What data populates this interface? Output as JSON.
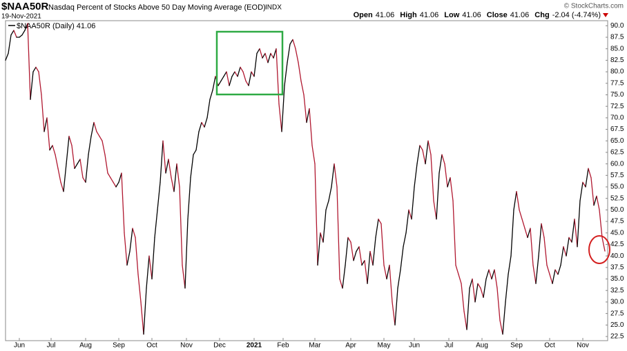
{
  "chart_data": {
    "type": "line",
    "title": "$NAA50R",
    "subtitle": "Nasdaq Percent of Stocks Above 50 Day Moving Average (EOD)",
    "exchange": "INDX",
    "date": "19-Nov-2021",
    "credit": "© StockCharts.com",
    "quote": [
      {
        "label": "Open",
        "value": 41.06
      },
      {
        "label": "High",
        "value": 41.06
      },
      {
        "label": "Low",
        "value": 41.06
      },
      {
        "label": "Close",
        "value": 41.06
      },
      {
        "label": "Chg",
        "value": "-2.04 (-4.74%)"
      }
    ],
    "series": [
      {
        "name": "$NAA50R (Daily) 41.06",
        "up_color": "#000000",
        "down_color": "#b0172f",
        "values": [
          82.5,
          84,
          88,
          89,
          87.5,
          87.5,
          88,
          89,
          90.5,
          74,
          80,
          81,
          80,
          75,
          67,
          70,
          63,
          64,
          62,
          59,
          56,
          54,
          60,
          66,
          64,
          59,
          60,
          61,
          57,
          56,
          62,
          66,
          69,
          67,
          66,
          65,
          62,
          58,
          57,
          56,
          55,
          56,
          58,
          45,
          38,
          41,
          46,
          44,
          36,
          30,
          23,
          33,
          40,
          35,
          44,
          50,
          56,
          65,
          58,
          61,
          57,
          54,
          60,
          55,
          38,
          33,
          48,
          57,
          62,
          63,
          67,
          69,
          68,
          70,
          74,
          76,
          79,
          77,
          78,
          79,
          80,
          77,
          79,
          80,
          79,
          81,
          80,
          78,
          77,
          80,
          79,
          84,
          85,
          83,
          84,
          82,
          84,
          83,
          85,
          73,
          67,
          77,
          82,
          86,
          87,
          85,
          82,
          78,
          75,
          69,
          72,
          64,
          60,
          38,
          45,
          43,
          50,
          52,
          55,
          60,
          55,
          35,
          33,
          38,
          44,
          43,
          39,
          41,
          42,
          38,
          39,
          34,
          41,
          38,
          44,
          48,
          47,
          38,
          35,
          38,
          30,
          25,
          33,
          37,
          42,
          45,
          50,
          48,
          55,
          60,
          64,
          63,
          60,
          65,
          62,
          52,
          48,
          58,
          62,
          60,
          55,
          57,
          52,
          38,
          36,
          34,
          28,
          24,
          33,
          35,
          30,
          34,
          33,
          31,
          35,
          37,
          35,
          37,
          33,
          26,
          23,
          30,
          36,
          40,
          50,
          54,
          50,
          48,
          46,
          44,
          46,
          38,
          34,
          40,
          47,
          44,
          38,
          36,
          34,
          37,
          36,
          38,
          42,
          40,
          44,
          43,
          48,
          42,
          52,
          56,
          55,
          59,
          57,
          51,
          53,
          50,
          44,
          41.06
        ]
      }
    ],
    "xlim": [
      0,
      217
    ],
    "xticks": [
      {
        "value": 5,
        "label": "Jun"
      },
      {
        "value": 16.5,
        "label": "Jul"
      },
      {
        "value": 29,
        "label": "Aug"
      },
      {
        "value": 41,
        "label": "Sep"
      },
      {
        "value": 53,
        "label": "Oct"
      },
      {
        "value": 65.5,
        "label": "Nov"
      },
      {
        "value": 77.5,
        "label": "Dec"
      },
      {
        "value": 90,
        "label": "2021"
      },
      {
        "value": 100.5,
        "label": "Feb"
      },
      {
        "value": 112,
        "label": "Mar"
      },
      {
        "value": 125,
        "label": "Apr"
      },
      {
        "value": 137,
        "label": "May"
      },
      {
        "value": 148,
        "label": "Jun"
      },
      {
        "value": 160.5,
        "label": "Jul"
      },
      {
        "value": 172.5,
        "label": "Aug"
      },
      {
        "value": 185,
        "label": "Sep"
      },
      {
        "value": 197,
        "label": "Oct"
      },
      {
        "value": 209,
        "label": "Nov"
      }
    ],
    "ylim": [
      21.6,
      91.1
    ],
    "yticks": [
      {
        "value": 22.5,
        "label": "22.5"
      },
      {
        "value": 25,
        "label": "25.0"
      },
      {
        "value": 27.5,
        "label": "27.5"
      },
      {
        "value": 30,
        "label": "30.0"
      },
      {
        "value": 32.5,
        "label": "32.5"
      },
      {
        "value": 35,
        "label": "35.0"
      },
      {
        "value": 37.5,
        "label": "37.5"
      },
      {
        "value": 40,
        "label": "40.0"
      },
      {
        "value": 42.5,
        "label": "42.5"
      },
      {
        "value": 45,
        "label": "45.0"
      },
      {
        "value": 47.5,
        "label": "47.5"
      },
      {
        "value": 50,
        "label": "50.0"
      },
      {
        "value": 52.5,
        "label": "52.5"
      },
      {
        "value": 55,
        "label": "55.0"
      },
      {
        "value": 57.5,
        "label": "57.5"
      },
      {
        "value": 60,
        "label": "60.0"
      },
      {
        "value": 62.5,
        "label": "62.5"
      },
      {
        "value": 65,
        "label": "65.0"
      },
      {
        "value": 67.5,
        "label": "67.5"
      },
      {
        "value": 70,
        "label": "70.0"
      },
      {
        "value": 72.5,
        "label": "72.5"
      },
      {
        "value": 75,
        "label": "75.0"
      },
      {
        "value": 77.5,
        "label": "77.5"
      },
      {
        "value": 80,
        "label": "80.0"
      },
      {
        "value": 82.5,
        "label": "82.5"
      },
      {
        "value": 85,
        "label": "85.0"
      },
      {
        "value": 87.5,
        "label": "87.5"
      },
      {
        "value": 90,
        "label": "90.0"
      }
    ],
    "grid": false
  }
}
